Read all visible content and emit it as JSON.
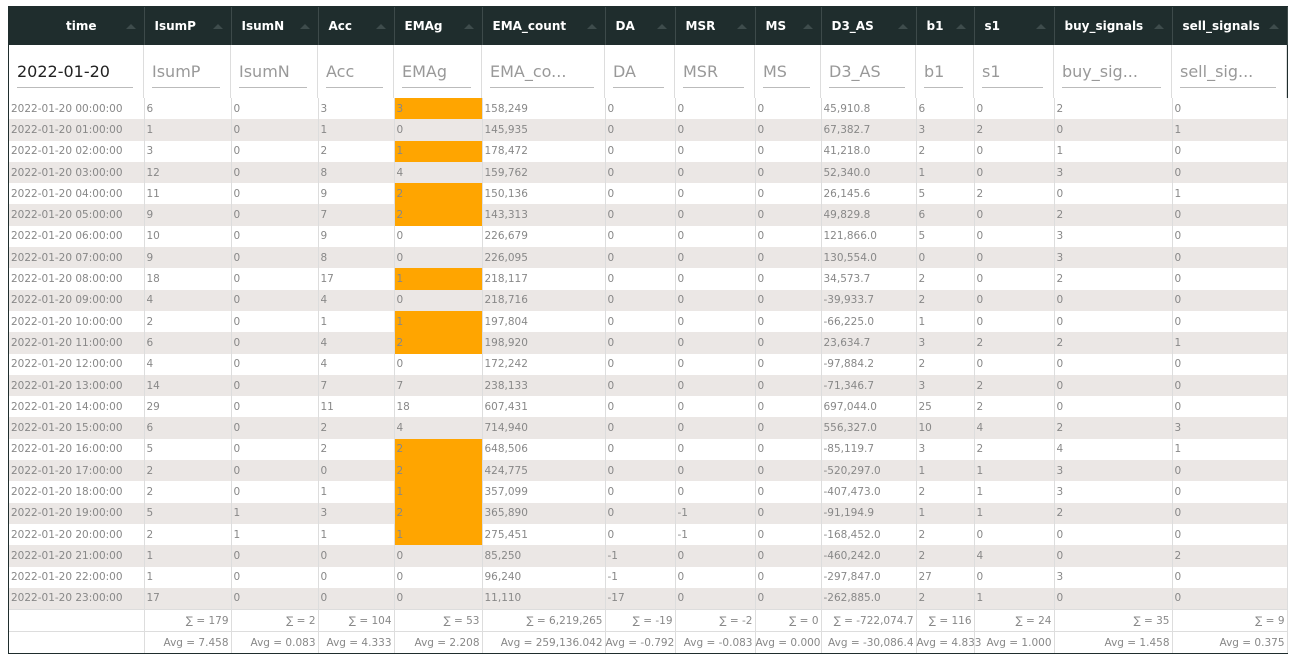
{
  "header": {
    "columns": [
      "time",
      "IsumP",
      "IsumN",
      "Acc",
      "EMAg",
      "EMA_count",
      "DA",
      "MSR",
      "MS",
      "D3_AS",
      "b1",
      "s1",
      "buy_signals",
      "sell_signals"
    ]
  },
  "filters": [
    "2022-01-20",
    "IsumP",
    "IsumN",
    "Acc",
    "EMAg",
    "EMA_co...",
    "DA",
    "MSR",
    "MS",
    "D3_AS",
    "b1",
    "s1",
    "buy_sig...",
    "sell_sig..."
  ],
  "table": {
    "rows": [
      [
        "2022-01-20 00:00:00",
        "6",
        "0",
        "3",
        "3",
        "158,249",
        "0",
        "0",
        "0",
        "45,910.8",
        "6",
        "0",
        "2",
        "0"
      ],
      [
        "2022-01-20 01:00:00",
        "1",
        "0",
        "1",
        "0",
        "145,935",
        "0",
        "0",
        "0",
        "67,382.7",
        "3",
        "2",
        "0",
        "1"
      ],
      [
        "2022-01-20 02:00:00",
        "3",
        "0",
        "2",
        "1",
        "178,472",
        "0",
        "0",
        "0",
        "41,218.0",
        "2",
        "0",
        "1",
        "0"
      ],
      [
        "2022-01-20 03:00:00",
        "12",
        "0",
        "8",
        "4",
        "159,762",
        "0",
        "0",
        "0",
        "52,340.0",
        "1",
        "0",
        "3",
        "0"
      ],
      [
        "2022-01-20 04:00:00",
        "11",
        "0",
        "9",
        "2",
        "150,136",
        "0",
        "0",
        "0",
        "26,145.6",
        "5",
        "2",
        "0",
        "1"
      ],
      [
        "2022-01-20 05:00:00",
        "9",
        "0",
        "7",
        "2",
        "143,313",
        "0",
        "0",
        "0",
        "49,829.8",
        "6",
        "0",
        "2",
        "0"
      ],
      [
        "2022-01-20 06:00:00",
        "10",
        "0",
        "9",
        "0",
        "226,679",
        "0",
        "0",
        "0",
        "121,866.0",
        "5",
        "0",
        "3",
        "0"
      ],
      [
        "2022-01-20 07:00:00",
        "9",
        "0",
        "8",
        "0",
        "226,095",
        "0",
        "0",
        "0",
        "130,554.0",
        "0",
        "0",
        "3",
        "0"
      ],
      [
        "2022-01-20 08:00:00",
        "18",
        "0",
        "17",
        "1",
        "218,117",
        "0",
        "0",
        "0",
        "34,573.7",
        "2",
        "0",
        "2",
        "0"
      ],
      [
        "2022-01-20 09:00:00",
        "4",
        "0",
        "4",
        "0",
        "218,716",
        "0",
        "0",
        "0",
        "-39,933.7",
        "2",
        "0",
        "0",
        "0"
      ],
      [
        "2022-01-20 10:00:00",
        "2",
        "0",
        "1",
        "1",
        "197,804",
        "0",
        "0",
        "0",
        "-66,225.0",
        "1",
        "0",
        "0",
        "0"
      ],
      [
        "2022-01-20 11:00:00",
        "6",
        "0",
        "4",
        "2",
        "198,920",
        "0",
        "0",
        "0",
        "23,634.7",
        "3",
        "2",
        "2",
        "1"
      ],
      [
        "2022-01-20 12:00:00",
        "4",
        "0",
        "4",
        "0",
        "172,242",
        "0",
        "0",
        "0",
        "-97,884.2",
        "2",
        "0",
        "0",
        "0"
      ],
      [
        "2022-01-20 13:00:00",
        "14",
        "0",
        "7",
        "7",
        "238,133",
        "0",
        "0",
        "0",
        "-71,346.7",
        "3",
        "2",
        "0",
        "0"
      ],
      [
        "2022-01-20 14:00:00",
        "29",
        "0",
        "11",
        "18",
        "607,431",
        "0",
        "0",
        "0",
        "697,044.0",
        "25",
        "2",
        "0",
        "0"
      ],
      [
        "2022-01-20 15:00:00",
        "6",
        "0",
        "2",
        "4",
        "714,940",
        "0",
        "0",
        "0",
        "556,327.0",
        "10",
        "4",
        "2",
        "3"
      ],
      [
        "2022-01-20 16:00:00",
        "5",
        "0",
        "2",
        "2",
        "648,506",
        "0",
        "0",
        "0",
        "-85,119.7",
        "3",
        "2",
        "4",
        "1"
      ],
      [
        "2022-01-20 17:00:00",
        "2",
        "0",
        "0",
        "2",
        "424,775",
        "0",
        "0",
        "0",
        "-520,297.0",
        "1",
        "1",
        "3",
        "0"
      ],
      [
        "2022-01-20 18:00:00",
        "2",
        "0",
        "1",
        "1",
        "357,099",
        "0",
        "0",
        "0",
        "-407,473.0",
        "2",
        "1",
        "3",
        "0"
      ],
      [
        "2022-01-20 19:00:00",
        "5",
        "1",
        "3",
        "2",
        "365,890",
        "0",
        "-1",
        "0",
        "-91,194.9",
        "1",
        "1",
        "2",
        "0"
      ],
      [
        "2022-01-20 20:00:00",
        "2",
        "1",
        "1",
        "1",
        "275,451",
        "0",
        "-1",
        "0",
        "-168,452.0",
        "2",
        "0",
        "0",
        "0"
      ],
      [
        "2022-01-20 21:00:00",
        "1",
        "0",
        "0",
        "0",
        "85,250",
        "-1",
        "0",
        "0",
        "-460,242.0",
        "2",
        "4",
        "0",
        "2"
      ],
      [
        "2022-01-20 22:00:00",
        "1",
        "0",
        "0",
        "0",
        "96,240",
        "-1",
        "0",
        "0",
        "-297,847.0",
        "27",
        "0",
        "3",
        "0"
      ],
      [
        "2022-01-20 23:00:00",
        "17",
        "0",
        "0",
        "0",
        "11,110",
        "-17",
        "0",
        "0",
        "-262,885.0",
        "2",
        "1",
        "0",
        "0"
      ]
    ],
    "sums": [
      "∑ = 179",
      "∑ = 2",
      "∑ = 104",
      "∑ = 53",
      "∑ = 6,219,265",
      "∑ = -19",
      "∑ = -2",
      "∑ = 0",
      "∑ = -722,074.7",
      "∑ = 116",
      "∑ = 24",
      "∑ = 35",
      "∑ = 9"
    ],
    "averages": [
      "Avg = 7.458",
      "Avg = 0.083",
      "Avg = 4.333",
      "Avg = 2.208",
      "Avg = 259,136.042",
      "Avg = -0.792",
      "Avg = -0.083",
      "Avg = 0.000",
      "Avg = -30,086.4",
      "Avg = 4.833",
      "Avg = 1.000",
      "Avg = 1.458",
      "Avg = 0.375"
    ]
  },
  "highlight": {
    "column": "EMAg",
    "color": "#ffa500",
    "rows": [
      0,
      2,
      4,
      5,
      8,
      10,
      11,
      16,
      17,
      18,
      19,
      20
    ]
  }
}
